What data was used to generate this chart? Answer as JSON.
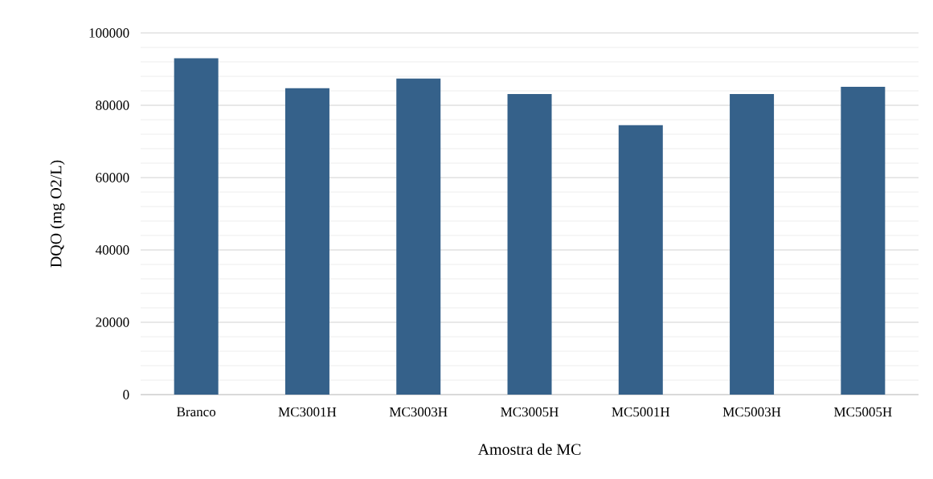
{
  "chart_data": {
    "type": "bar",
    "xlabel": "Amostra de MC",
    "ylabel": "DQO (mg O2/L)",
    "categories": [
      "Branco",
      "MC3001H",
      "MC3003H",
      "MC3005H",
      "MC5001H",
      "MC5003H",
      "MC5005H"
    ],
    "values": [
      93000,
      84700,
      87400,
      83100,
      74500,
      83100,
      85100
    ],
    "color": "#35618a",
    "ylim": [
      0,
      100000
    ],
    "yticks": [
      0,
      20000,
      40000,
      60000,
      80000,
      100000
    ],
    "grid": "y"
  }
}
